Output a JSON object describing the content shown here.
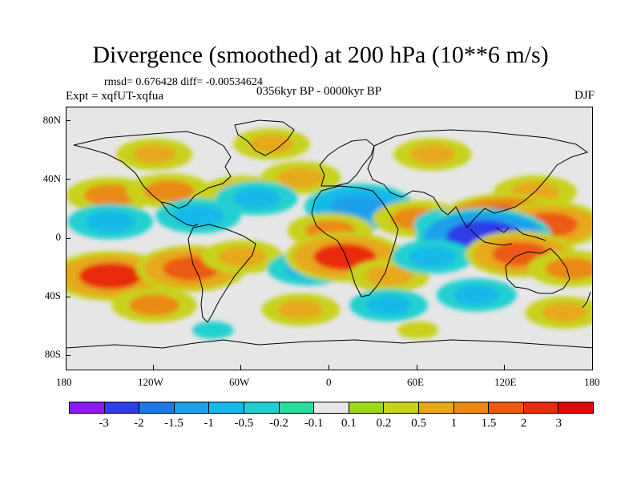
{
  "title": "Divergence (smoothed) at 200 hPa (10**6 m/s)",
  "stats": "rmsd= 0.676428 diff= -0.00534624",
  "experiment": "Expt = xqfUT-xqfua",
  "period": "0356kyr BP - 0000kyr BP",
  "season": "DJF",
  "y_ticks": [
    "80N",
    "40N",
    "0",
    "40S",
    "80S"
  ],
  "x_ticks": [
    "180",
    "120W",
    "60W",
    "0",
    "60E",
    "120E",
    "180"
  ],
  "colorbar": {
    "labels": [
      "-3",
      "-2",
      "-1.5",
      "-1",
      "-0.5",
      "-0.2",
      "-0.1",
      "0.1",
      "0.2",
      "0.5",
      "1",
      "1.5",
      "2",
      "3"
    ],
    "colors": [
      "#8c1bf0",
      "#2f3ce8",
      "#1f78e6",
      "#1ea0ea",
      "#18b8e8",
      "#20d0d0",
      "#28dc9a",
      "#e6e6e6",
      "#9ed81a",
      "#c8d21a",
      "#e6a81a",
      "#ea8a14",
      "#ec5a12",
      "#e82a10",
      "#dc0a0a"
    ]
  },
  "chart_data": {
    "type": "heatmap",
    "variable": "Divergence (smoothed) at 200 hPa",
    "units": "10**6 m/s",
    "xlim": [
      -180,
      180
    ],
    "ylim": [
      -90,
      90
    ],
    "x_tick_values": [
      -180,
      -120,
      -60,
      0,
      60,
      120,
      180
    ],
    "y_tick_values": [
      80,
      40,
      0,
      -40,
      -80
    ],
    "levels": [
      -3,
      -2,
      -1.5,
      -1,
      -0.5,
      -0.2,
      -0.1,
      0.1,
      0.2,
      0.5,
      1,
      1.5,
      2,
      3
    ],
    "features": [
      {
        "lon": -150,
        "lat": 30,
        "value": 1.2
      },
      {
        "lon": -110,
        "lat": 33,
        "value": 1.0
      },
      {
        "lon": -60,
        "lat": 32,
        "value": 0.8
      },
      {
        "lon": -20,
        "lat": 42,
        "value": 0.7
      },
      {
        "lon": 140,
        "lat": 32,
        "value": 0.9
      },
      {
        "lon": -120,
        "lat": 58,
        "value": 0.5
      },
      {
        "lon": -40,
        "lat": 65,
        "value": 0.5
      },
      {
        "lon": 70,
        "lat": 58,
        "value": 0.6
      },
      {
        "lon": -150,
        "lat": 12,
        "value": -1.0
      },
      {
        "lon": -90,
        "lat": 16,
        "value": -1.0
      },
      {
        "lon": -50,
        "lat": 28,
        "value": -0.8
      },
      {
        "lon": 20,
        "lat": 22,
        "value": -1.5
      },
      {
        "lon": 60,
        "lat": 14,
        "value": 1.3
      },
      {
        "lon": 0,
        "lat": 6,
        "value": 1.0
      },
      {
        "lon": 85,
        "lat": 10,
        "value": -0.8
      },
      {
        "lon": 120,
        "lat": 12,
        "value": 3.0
      },
      {
        "lon": 150,
        "lat": 10,
        "value": 1.5
      },
      {
        "lon": 105,
        "lat": 2,
        "value": -3.0
      },
      {
        "lon": -150,
        "lat": -25,
        "value": 2.0
      },
      {
        "lon": -95,
        "lat": -20,
        "value": 1.5
      },
      {
        "lon": -60,
        "lat": -12,
        "value": 0.8
      },
      {
        "lon": -15,
        "lat": -20,
        "value": -0.8
      },
      {
        "lon": 10,
        "lat": -12,
        "value": 2.0
      },
      {
        "lon": 40,
        "lat": -25,
        "value": 0.8
      },
      {
        "lon": 70,
        "lat": -12,
        "value": -0.8
      },
      {
        "lon": 130,
        "lat": -10,
        "value": 1.5
      },
      {
        "lon": 165,
        "lat": -20,
        "value": 1.2
      },
      {
        "lon": -120,
        "lat": -45,
        "value": 1.0
      },
      {
        "lon": -20,
        "lat": -48,
        "value": 0.6
      },
      {
        "lon": 40,
        "lat": -45,
        "value": -0.6
      },
      {
        "lon": 100,
        "lat": -38,
        "value": -0.7
      },
      {
        "lon": 160,
        "lat": -50,
        "value": 0.6
      },
      {
        "lon": -80,
        "lat": -62,
        "value": -0.3
      },
      {
        "lon": 60,
        "lat": -62,
        "value": 0.3
      }
    ]
  }
}
